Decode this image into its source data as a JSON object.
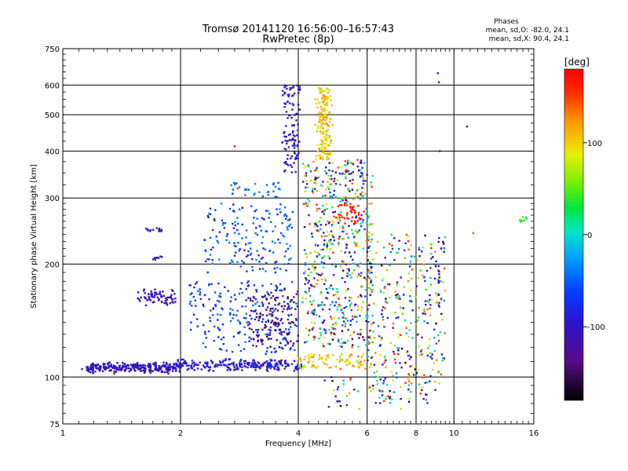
{
  "chart_data": {
    "type": "scatter",
    "title": "Tromsø 20141120 16:56:00–16:57:43",
    "subtitle": "RwPretec (8p)",
    "xlabel": "Frequency [MHz]",
    "ylabel": "Stationary phase Virtual Height [km]",
    "x_scale": "log",
    "y_scale": "log",
    "xlim": [
      1,
      16
    ],
    "ylim": [
      75,
      750
    ],
    "x_ticks": [
      1,
      2,
      4,
      6,
      8,
      10,
      16
    ],
    "x_tick_labels": [
      "1",
      "2",
      "4",
      "6",
      "8",
      "10",
      "16"
    ],
    "y_ticks": [
      75,
      100,
      200,
      300,
      400,
      500,
      600,
      750
    ],
    "y_tick_labels": [
      "75",
      "100",
      "200",
      "300",
      "400",
      "500",
      "600",
      "750"
    ],
    "grid": true,
    "phase_info": {
      "heading": "Phases",
      "line1": "mean, sd,O: -82.0, 24.1",
      "line2": "mean, sd,X:  90.4, 24.1"
    },
    "colorbar": {
      "label": "[deg]",
      "range": [
        -180,
        180
      ],
      "ticks": [
        100,
        0,
        -100
      ],
      "tick_labels": [
        "100",
        "0",
        "-100"
      ],
      "colormap": "black-purple-blue-cyan-green-yellow-red"
    },
    "clusters": [
      {
        "f": [
          1.15,
          1.95
        ],
        "h": [
          102,
          110
        ],
        "phase": [
          -115,
          -90
        ],
        "n": 260,
        "shape": "band"
      },
      {
        "f": [
          1.95,
          4.1
        ],
        "h": [
          103,
          112
        ],
        "phase": [
          -110,
          -75
        ],
        "n": 240,
        "shape": "band"
      },
      {
        "f": [
          4.0,
          6.2
        ],
        "h": [
          105,
          115
        ],
        "phase": [
          60,
          140
        ],
        "n": 90,
        "shape": "scatter"
      },
      {
        "f": [
          1.55,
          1.95
        ],
        "h": [
          155,
          172
        ],
        "phase": [
          -115,
          -95
        ],
        "n": 70,
        "shape": "band"
      },
      {
        "f": [
          1.62,
          1.8
        ],
        "h": [
          243,
          252
        ],
        "phase": [
          -100,
          -85
        ],
        "n": 14,
        "shape": "band"
      },
      {
        "f": [
          1.7,
          1.8
        ],
        "h": [
          205,
          212
        ],
        "phase": [
          -100,
          -80
        ],
        "n": 8,
        "shape": "band"
      },
      {
        "f": [
          2.1,
          4.0
        ],
        "h": [
          115,
          180
        ],
        "phase": [
          -95,
          -40
        ],
        "n": 230,
        "shape": "scatter"
      },
      {
        "f": [
          2.3,
          3.9
        ],
        "h": [
          190,
          290
        ],
        "phase": [
          -95,
          -30
        ],
        "n": 170,
        "shape": "scatter"
      },
      {
        "f": [
          2.6,
          3.6
        ],
        "h": [
          300,
          330
        ],
        "phase": [
          -60,
          -30
        ],
        "n": 30,
        "shape": "scatter"
      },
      {
        "f": [
          3.0,
          4.0
        ],
        "h": [
          120,
          170
        ],
        "phase": [
          -160,
          -120
        ],
        "n": 120,
        "shape": "scatter"
      },
      {
        "f": [
          3.6,
          4.1
        ],
        "h": [
          350,
          600
        ],
        "phase": [
          -110,
          -80
        ],
        "n": 110,
        "shape": "column"
      },
      {
        "f": [
          4.4,
          4.9
        ],
        "h": [
          380,
          590
        ],
        "phase": [
          70,
          130
        ],
        "n": 170,
        "shape": "column"
      },
      {
        "f": [
          4.1,
          6.2
        ],
        "h": [
          120,
          380
        ],
        "phase": [
          -170,
          170
        ],
        "n": 600,
        "shape": "scatter"
      },
      {
        "f": [
          5.0,
          5.9
        ],
        "h": [
          255,
          290
        ],
        "phase": [
          150,
          175
        ],
        "n": 40,
        "shape": "scatter"
      },
      {
        "f": [
          6.0,
          9.5
        ],
        "h": [
          85,
          240
        ],
        "phase": [
          -170,
          170
        ],
        "n": 330,
        "shape": "scatter"
      },
      {
        "f": [
          4.6,
          7.6
        ],
        "h": [
          82,
          100
        ],
        "phase": [
          -170,
          170
        ],
        "n": 40,
        "shape": "scatter"
      },
      {
        "f": [
          9.1,
          9.2
        ],
        "h": [
          150,
          250
        ],
        "phase": [
          -120,
          -90
        ],
        "n": 14,
        "shape": "column"
      },
      {
        "f": [
          14.5,
          15.4
        ],
        "h": [
          258,
          268
        ],
        "phase": [
          30,
          60
        ],
        "n": 8,
        "shape": "band"
      }
    ],
    "isolated_points": [
      {
        "f": 9.1,
        "h": 645,
        "phase": -110
      },
      {
        "f": 9.15,
        "h": 610,
        "phase": -120
      },
      {
        "f": 9.2,
        "h": 400,
        "phase": -110
      },
      {
        "f": 10.8,
        "h": 465,
        "phase": -100
      },
      {
        "f": 11.2,
        "h": 242,
        "phase": 140
      },
      {
        "f": 2.75,
        "h": 412,
        "phase": 170
      },
      {
        "f": 2.8,
        "h": 318,
        "phase": 150
      },
      {
        "f": 1.12,
        "h": 105,
        "phase": -80
      }
    ]
  }
}
